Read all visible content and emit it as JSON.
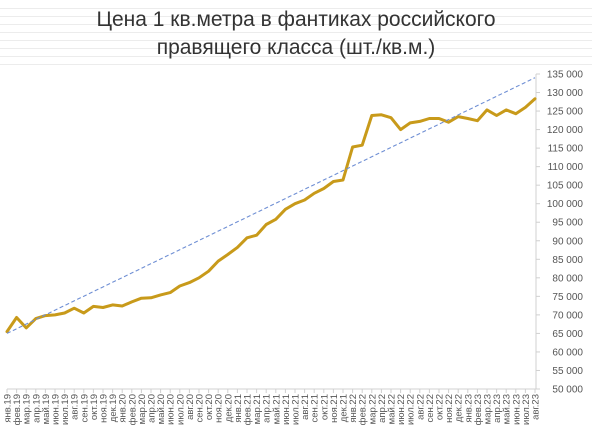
{
  "chart_data": {
    "type": "line",
    "title_lines": [
      "Цена 1 кв.метра в фантиках российского",
      "правящего класса (шт./кв.м.)"
    ],
    "x_categories": [
      "янв.19",
      "фев.19",
      "мар.19",
      "апр.19",
      "май.19",
      "июн.19",
      "июл.19",
      "авг.19",
      "сен.19",
      "окт.19",
      "ноя.19",
      "дек.19",
      "янв.20",
      "фев.20",
      "мар.20",
      "апр.20",
      "май.20",
      "июн.20",
      "июл.20",
      "авг.20",
      "сен.20",
      "окт.20",
      "ноя.20",
      "дек.20",
      "янв.21",
      "фев.21",
      "мар.21",
      "апр.21",
      "май.21",
      "июн.21",
      "июл.21",
      "авг.21",
      "сен.21",
      "окт.21",
      "ноя.21",
      "дек.21",
      "янв.22",
      "фев.22",
      "мар.22",
      "апр.22",
      "май.22",
      "июн.22",
      "июл.22",
      "авг.22",
      "сен.22",
      "окт.22",
      "ноя.22",
      "дек.22",
      "янв.23",
      "фев.23",
      "мар.23",
      "апр.23",
      "май.23",
      "июн.23",
      "июл.23",
      "авг.23"
    ],
    "y_axis": {
      "min": 50000,
      "max": 135000,
      "step": 5000,
      "position": "right",
      "tick_labels": [
        "50 000",
        "55 000",
        "60 000",
        "65 000",
        "70 000",
        "75 000",
        "80 000",
        "85 000",
        "90 000",
        "95 000",
        "100 000",
        "105 000",
        "110 000",
        "115 000",
        "120 000",
        "125 000",
        "130 000",
        "135 000"
      ]
    },
    "grid": false,
    "legend": "none",
    "series": [
      {
        "style": "solid",
        "color": "#c89a1a",
        "values": [
          65500,
          69300,
          66500,
          69000,
          69800,
          70000,
          70500,
          71800,
          70500,
          72300,
          72000,
          72700,
          72400,
          73500,
          74500,
          74600,
          75400,
          76000,
          77800,
          78700,
          80000,
          81800,
          84500,
          86300,
          88200,
          90800,
          91500,
          94400,
          95800,
          98500,
          100000,
          101000,
          102800,
          104100,
          106000,
          106400,
          115300,
          115800,
          123800,
          124000,
          123200,
          120000,
          121800,
          122200,
          123000,
          123000,
          122000,
          123500,
          123000,
          122400,
          125300,
          123800,
          125300,
          124300,
          126000,
          128300
        ]
      },
      {
        "style": "dashed",
        "color": "#6f8fd4",
        "values": [
          65000,
          134000
        ]
      }
    ]
  }
}
